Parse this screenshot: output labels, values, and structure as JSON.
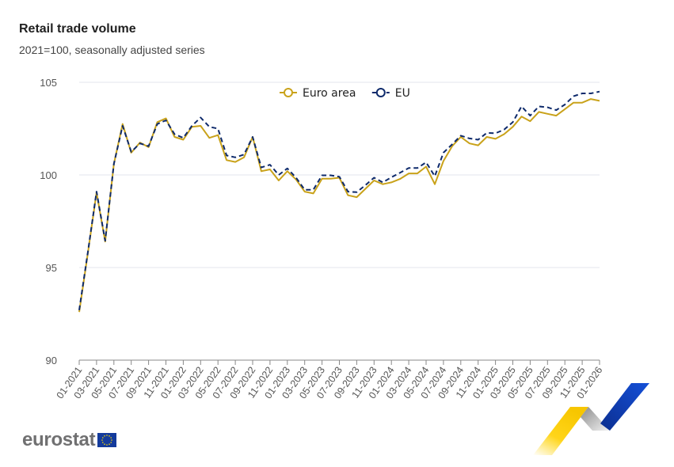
{
  "header": {
    "title": "Retail trade volume",
    "subtitle": "2021=100, seasonally adjusted series"
  },
  "legend": {
    "items": [
      {
        "label": "Euro area",
        "color": "#c9a21a",
        "style": "solid"
      },
      {
        "label": "EU",
        "color": "#0e2a6b",
        "style": "dashed"
      }
    ]
  },
  "footer": {
    "logo_text": "eurostat",
    "flag_icon": "eu-flag-icon"
  },
  "colors": {
    "euro_area": "#c9a21a",
    "eu": "#0e2a6b",
    "grid": "#e3e6ee",
    "axis": "#888888",
    "tick_label": "#555555"
  },
  "chart_data": {
    "type": "line",
    "title": "Retail trade volume",
    "subtitle": "2021=100, seasonally adjusted series",
    "xlabel": "",
    "ylabel": "",
    "ylim": [
      90,
      105
    ],
    "yticks": [
      90,
      95,
      100,
      105
    ],
    "grid": true,
    "legend_position": "top-center",
    "x_tick_labels": [
      "01-2021",
      "03-2021",
      "05-2021",
      "07-2021",
      "09-2021",
      "11-2021",
      "01-2022",
      "03-2022",
      "05-2022",
      "07-2022",
      "09-2022",
      "11-2022",
      "01-2023",
      "03-2023",
      "05-2023",
      "07-2023",
      "09-2023",
      "11-2023",
      "01-2024",
      "03-2024",
      "05-2024",
      "07-2024",
      "09-2024",
      "11-2024",
      "01-2025",
      "03-2025",
      "05-2025",
      "07-2025",
      "09-2025",
      "11-2025",
      "01-2026"
    ],
    "x": [
      "01-2021",
      "02-2021",
      "03-2021",
      "04-2021",
      "05-2021",
      "06-2021",
      "07-2021",
      "08-2021",
      "09-2021",
      "10-2021",
      "11-2021",
      "12-2021",
      "01-2022",
      "02-2022",
      "03-2022",
      "04-2022",
      "05-2022",
      "06-2022",
      "07-2022",
      "08-2022",
      "09-2022",
      "10-2022",
      "11-2022",
      "12-2022",
      "01-2023",
      "02-2023",
      "03-2023",
      "04-2023",
      "05-2023",
      "06-2023",
      "07-2023",
      "08-2023",
      "09-2023",
      "10-2023",
      "11-2023",
      "12-2023",
      "01-2024",
      "02-2024",
      "03-2024",
      "04-2024",
      "05-2024",
      "06-2024",
      "07-2024",
      "08-2024",
      "09-2024",
      "10-2024",
      "11-2024",
      "12-2024",
      "01-2025",
      "02-2025",
      "03-2025",
      "04-2025",
      "05-2025",
      "06-2025",
      "07-2025",
      "08-2025",
      "09-2025",
      "10-2025",
      "11-2025",
      "12-2025",
      "01-2026"
    ],
    "series": [
      {
        "name": "Euro area",
        "values": [
          92.6,
          95.8,
          99.05,
          96.4,
          100.6,
          102.75,
          101.2,
          101.75,
          101.5,
          102.85,
          103.05,
          102.05,
          101.9,
          102.6,
          102.65,
          102.0,
          102.15,
          100.8,
          100.7,
          100.95,
          102.05,
          100.2,
          100.3,
          99.7,
          100.2,
          99.75,
          99.1,
          99.0,
          99.8,
          99.8,
          99.85,
          98.9,
          98.8,
          99.25,
          99.7,
          99.5,
          99.6,
          99.78,
          100.08,
          100.08,
          100.45,
          99.5,
          100.75,
          101.55,
          102.05,
          101.7,
          101.6,
          102.05,
          101.95,
          102.2,
          102.6,
          103.15,
          102.9,
          103.4,
          103.3,
          103.2,
          103.55,
          103.9,
          103.9,
          104.1,
          104.0
        ]
      },
      {
        "name": "EU",
        "values": [
          92.7,
          95.85,
          99.1,
          96.45,
          100.6,
          102.65,
          101.25,
          101.7,
          101.55,
          102.75,
          102.95,
          102.2,
          102.0,
          102.65,
          103.1,
          102.6,
          102.5,
          101.05,
          100.95,
          101.1,
          102.05,
          100.4,
          100.55,
          100.0,
          100.35,
          99.85,
          99.2,
          99.2,
          99.98,
          99.98,
          99.9,
          99.1,
          99.07,
          99.45,
          99.85,
          99.6,
          99.87,
          100.12,
          100.37,
          100.37,
          100.68,
          99.93,
          101.2,
          101.65,
          102.12,
          101.97,
          101.9,
          102.27,
          102.25,
          102.45,
          102.85,
          103.7,
          103.2,
          103.7,
          103.65,
          103.5,
          103.8,
          104.25,
          104.4,
          104.4,
          104.5
        ]
      }
    ]
  }
}
